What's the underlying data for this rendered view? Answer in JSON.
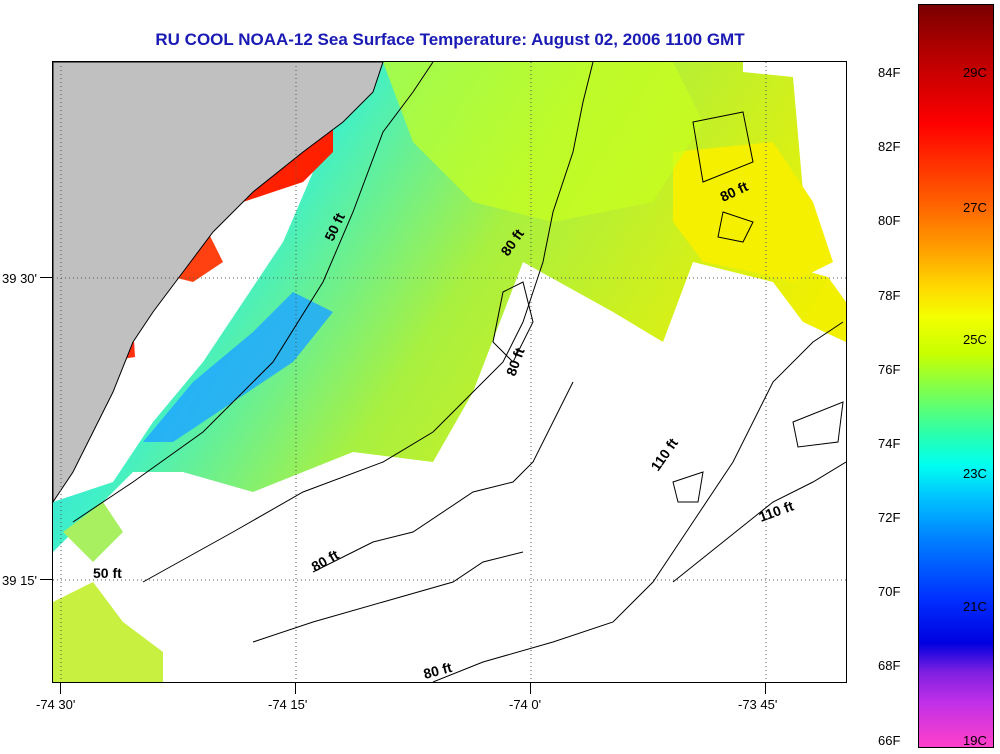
{
  "title": "RU COOL  NOAA-12  Sea Surface Temperature:  August 02, 2006 1100 GMT",
  "latitude_labels": [
    "39 30'",
    "39 15'"
  ],
  "longitude_labels": [
    "-74 30'",
    "-74 15'",
    "-74 0'",
    "-73 45'"
  ],
  "contour_labels": [
    "50 ft",
    "80 ft",
    "80 ft",
    "80 ft",
    "80 ft",
    "50 ft",
    "80 ft",
    "110 ft",
    "110 ft"
  ],
  "colorbar": {
    "fahrenheit_labels": [
      "84F",
      "82F",
      "80F",
      "78F",
      "76F",
      "74F",
      "72F",
      "70F",
      "68F",
      "66F"
    ],
    "celsius_labels": [
      "29C",
      "27C",
      "25C",
      "23C",
      "21C",
      "19C"
    ]
  },
  "colors": {
    "land": "#c0c0c0",
    "title": "#1a1ab4",
    "no_data": "#ffffff"
  }
}
